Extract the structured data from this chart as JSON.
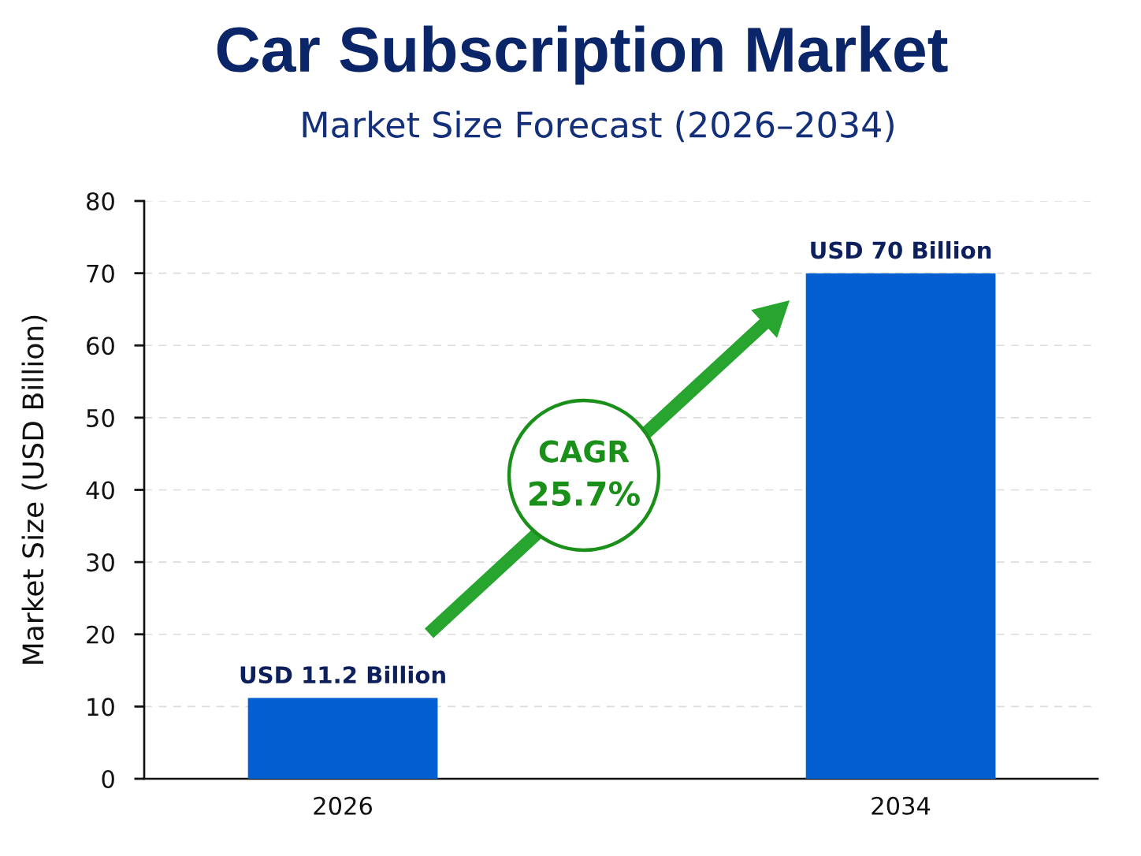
{
  "chart_data": {
    "type": "bar",
    "title": "Car Subscription Market",
    "subtitle": "Market Size Forecast (2026–2034)",
    "ylabel": "Market Size (USD Billion)",
    "categories": [
      "2026",
      "2034"
    ],
    "values": [
      11.2,
      70
    ],
    "value_labels": [
      "USD 11.2 Billion",
      "USD 70 Billion"
    ],
    "color": "#035fd1",
    "ylim": [
      0,
      80
    ],
    "yticks": [
      0,
      10,
      20,
      30,
      40,
      50,
      60,
      70,
      80
    ],
    "grid": "y",
    "annotations": [
      "CAGR",
      "25.7%"
    ]
  }
}
